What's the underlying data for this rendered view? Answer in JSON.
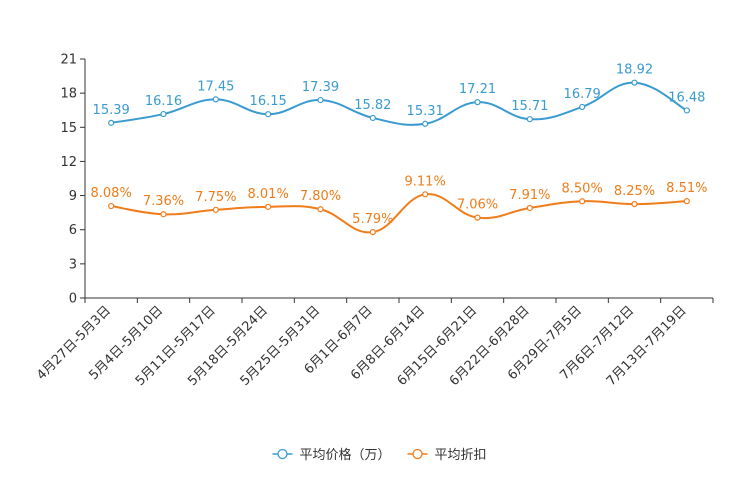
{
  "chart_data": {
    "type": "line",
    "title": "",
    "xlabel": "",
    "ylabel": "",
    "ylim": [
      0,
      21
    ],
    "yticks": [
      0,
      3,
      6,
      9,
      12,
      15,
      18,
      21
    ],
    "grid": false,
    "legend_position": "bottom-center",
    "categories": [
      "4月27日-5月3日",
      "5月4日-5月10日",
      "5月11日-5月17日",
      "5月18日-5月24日",
      "5月25日-5月31日",
      "6月1日-6月7日",
      "6月8日-6月14日",
      "6月15日-6月21日",
      "6月22日-6月28日",
      "6月29日-7月5日",
      "7月6日-7月12日",
      "7月13日-7月19日"
    ],
    "series": [
      {
        "name": "平均价格（万）",
        "color": "#3a9bd0",
        "values": [
          15.39,
          16.16,
          17.45,
          16.15,
          17.39,
          15.82,
          15.31,
          17.21,
          15.71,
          16.79,
          18.92,
          16.48
        ],
        "labels": [
          "15.39",
          "16.16",
          "17.45",
          "16.15",
          "17.39",
          "15.82",
          "15.31",
          "17.21",
          "15.71",
          "16.79",
          "18.92",
          "16.48"
        ]
      },
      {
        "name": "平均折扣",
        "color": "#f07c1a",
        "values": [
          8.08,
          7.36,
          7.75,
          8.01,
          7.8,
          5.79,
          9.11,
          7.06,
          7.91,
          8.5,
          8.25,
          8.51
        ],
        "labels": [
          "8.08%",
          "7.36%",
          "7.75%",
          "8.01%",
          "7.80%",
          "5.79%",
          "9.11%",
          "7.06%",
          "7.91%",
          "8.50%",
          "8.25%",
          "8.51%"
        ]
      }
    ]
  }
}
